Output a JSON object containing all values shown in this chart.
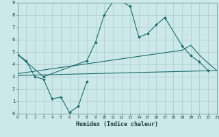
{
  "xlabel": "Humidex (Indice chaleur)",
  "xlim": [
    0,
    23
  ],
  "ylim": [
    0,
    9
  ],
  "xticks": [
    0,
    1,
    2,
    3,
    4,
    5,
    6,
    7,
    8,
    9,
    10,
    11,
    12,
    13,
    14,
    15,
    16,
    17,
    18,
    19,
    20,
    21,
    22,
    23
  ],
  "yticks": [
    0,
    1,
    2,
    3,
    4,
    5,
    6,
    7,
    8,
    9
  ],
  "bg_color": "#cde8e8",
  "grid_color": "#aacccc",
  "line_color": "#1a6b6b",
  "line1_x": [
    0,
    1,
    2,
    3,
    4,
    5,
    6,
    7,
    8
  ],
  "line1_y": [
    4.8,
    4.3,
    3.0,
    2.8,
    1.2,
    1.35,
    0.1,
    0.6,
    2.6
  ],
  "line2_x": [
    0,
    3,
    8,
    9,
    10,
    11,
    12,
    13,
    14,
    15,
    16,
    17
  ],
  "line2_y": [
    4.8,
    3.0,
    4.3,
    5.8,
    8.0,
    9.1,
    9.1,
    8.7,
    6.2,
    6.5,
    7.2,
    7.8
  ],
  "line3_x": [
    0,
    1,
    2,
    3,
    4,
    5,
    6,
    7,
    8,
    9,
    10,
    11,
    12,
    13,
    14,
    15,
    16,
    17,
    18,
    19,
    20,
    21,
    22,
    23
  ],
  "line3_y": [
    3.25,
    3.35,
    3.45,
    3.55,
    3.65,
    3.75,
    3.85,
    3.95,
    4.05,
    4.15,
    4.25,
    4.35,
    4.45,
    4.55,
    4.65,
    4.75,
    4.85,
    4.95,
    5.05,
    5.15,
    5.55,
    4.75,
    4.1,
    3.5
  ],
  "line4_x": [
    0,
    23
  ],
  "line4_y": [
    3.1,
    3.5
  ],
  "line5_x": [
    17,
    19,
    20,
    21,
    22
  ],
  "line5_y": [
    7.8,
    5.5,
    4.7,
    4.2,
    3.5
  ]
}
